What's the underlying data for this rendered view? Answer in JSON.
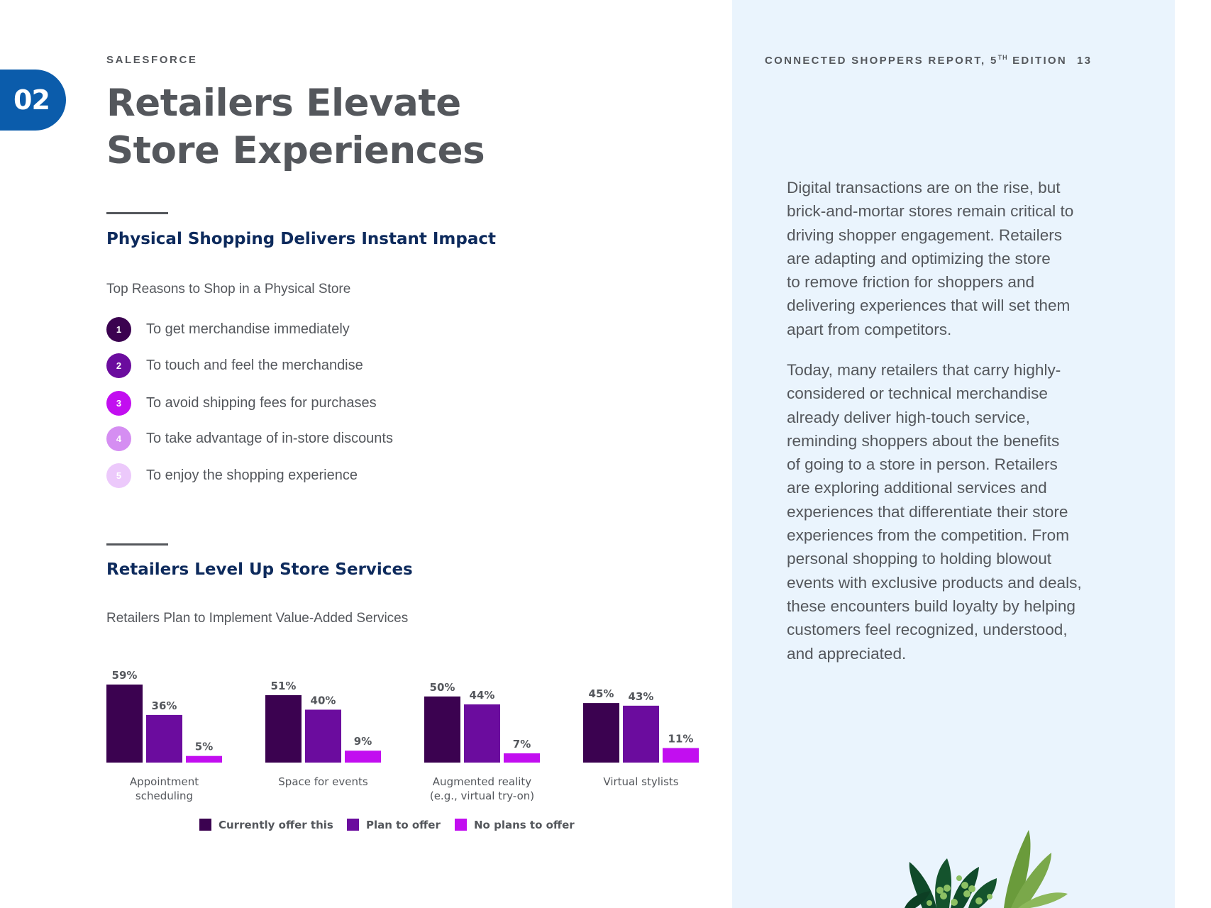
{
  "header": {
    "section_number": "02",
    "brand": "SALESFORCE",
    "report_title": "CONNECTED SHOPPERS REPORT, 5",
    "report_title_sup": "TH",
    "report_title_tail": " EDITION",
    "page_number": "13"
  },
  "title": {
    "line1": "Retailers Elevate",
    "line2": "Store Experiences"
  },
  "section1": {
    "heading": "Physical Shopping Delivers Instant Impact",
    "subtitle": "Top Reasons to Shop in a Physical Store",
    "reasons": [
      {
        "rank": "1",
        "text": "To get merchandise immediately",
        "color": "#3b0250"
      },
      {
        "rank": "2",
        "text": "To touch and feel the merchandise",
        "color": "#6b0c9e"
      },
      {
        "rank": "3",
        "text": "To avoid shipping fees for purchases",
        "color": "#c20ef0"
      },
      {
        "rank": "4",
        "text": "To take advantage of in-store discounts",
        "color": "#d58ef2"
      },
      {
        "rank": "5",
        "text": "To enjoy the shopping experience",
        "color": "#ecc9fb"
      }
    ]
  },
  "section2": {
    "heading": "Retailers Level Up Store Services",
    "subtitle": "Retailers Plan to Implement Value-Added Services"
  },
  "chart_data": {
    "type": "bar",
    "categories": [
      [
        "Appointment",
        "scheduling"
      ],
      [
        "Space for events"
      ],
      [
        "Augmented reality",
        "(e.g., virtual try-on)"
      ],
      [
        "Virtual stylists"
      ]
    ],
    "series": [
      {
        "name": "Currently offer this",
        "values": [
          59,
          51,
          50,
          45
        ],
        "color": "#3b0250"
      },
      {
        "name": "Plan to offer",
        "values": [
          36,
          40,
          44,
          43
        ],
        "color": "#6b0c9e"
      },
      {
        "name": "No plans to offer",
        "values": [
          5,
          9,
          7,
          11
        ],
        "color": "#c20ef0"
      }
    ],
    "value_suffix": "%",
    "ylim": [
      0,
      59
    ],
    "legend": "bottom",
    "grid": false
  },
  "body": {
    "paragraph1": [
      "Digital transactions are on the rise, but",
      "brick-and-mortar stores remain critical to",
      "driving shopper engagement. Retailers",
      "are adapting and optimizing the store",
      "to remove friction for shoppers and",
      "delivering experiences that will set them",
      "apart from competitors."
    ],
    "paragraph2": [
      "Today, many retailers that carry highly-",
      "considered or technical merchandise",
      "already deliver high-touch service,",
      "reminding shoppers about the benefits",
      "of going to a store in person. Retailers",
      "are exploring additional services and",
      "experiences that differentiate their store",
      "experiences from the competition. From",
      "personal shopping to holding blowout",
      "events with exclusive products and deals,",
      "these encounters build loyalty by helping",
      "customers feel recognized, understood,",
      "and appreciated."
    ]
  }
}
